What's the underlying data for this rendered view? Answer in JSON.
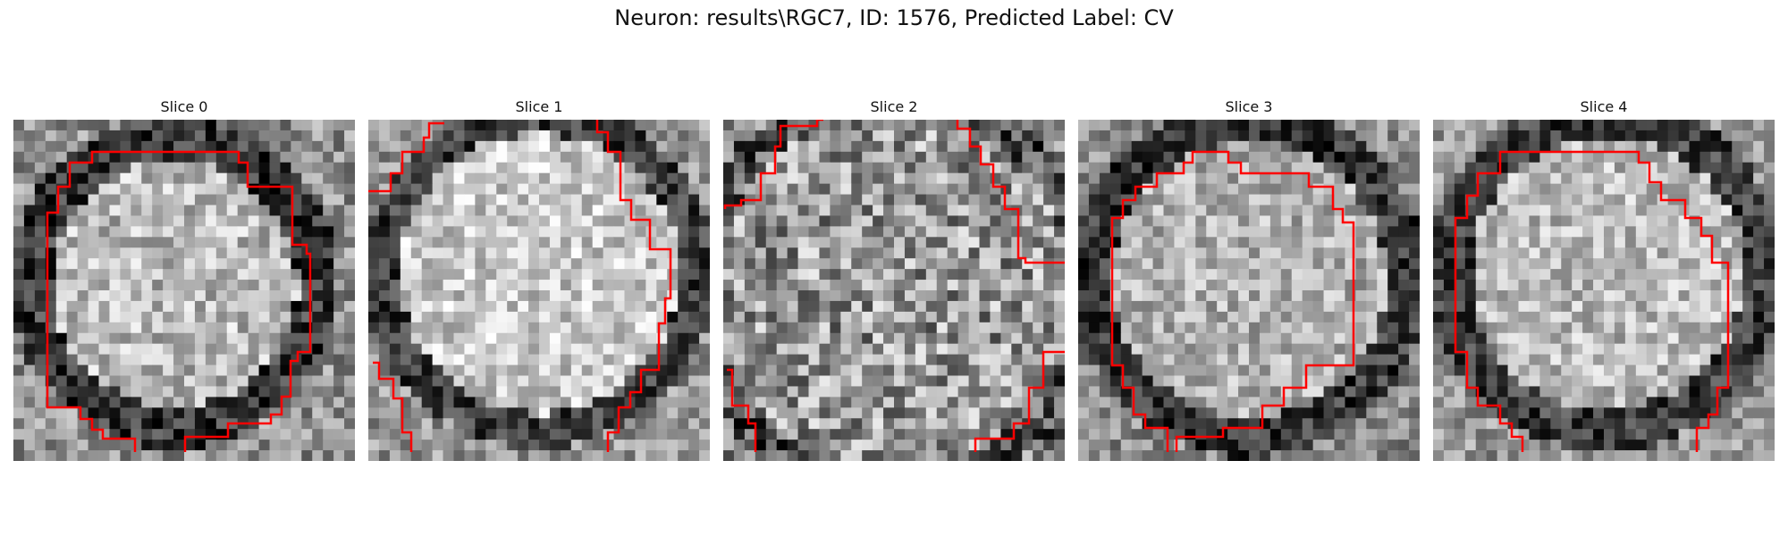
{
  "figure": {
    "title": "Neuron: results\\RGC7, ID: 1576, Predicted Label: CV"
  },
  "panels": [
    {
      "title": "Slice 0",
      "outline_color": "#ff0000"
    },
    {
      "title": "Slice 1",
      "outline_color": "#ff0000"
    },
    {
      "title": "Slice 2",
      "outline_color": "#ff0000"
    },
    {
      "title": "Slice 3",
      "outline_color": "#ff0000"
    },
    {
      "title": "Slice 4",
      "outline_color": "#ff0000"
    }
  ]
}
